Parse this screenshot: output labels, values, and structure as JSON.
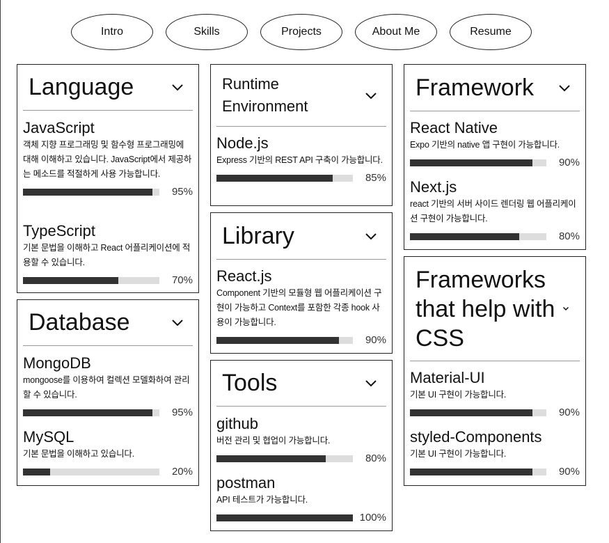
{
  "nav": [
    "Intro",
    "Skills",
    "Projects",
    "About Me",
    "Resume"
  ],
  "cards": {
    "language": {
      "title": "Language",
      "items": [
        {
          "name": "JavaScript",
          "desc": "객체 지향 프로그래밍 및 함수형 프로그래밍에 대해 이해하고 있습니다. JavaScript에서 제공하는 메소드를 적절하게 사용 가능합니다.",
          "percent": 95,
          "percent_label": "95%"
        },
        {
          "name": "TypeScript",
          "desc": "기본 문법을 이해하고 React 어플리케이션에 적용할 수 있습니다.",
          "percent": 70,
          "percent_label": "70%"
        }
      ]
    },
    "database": {
      "title": "Database",
      "items": [
        {
          "name": "MongoDB",
          "desc": "mongoose를 이용하여 컬렉션 모델화하여 관리할 수 있습니다.",
          "percent": 95,
          "percent_label": "95%"
        },
        {
          "name": "MySQL",
          "desc": "기본 문법을 이해하고 있습니다.",
          "percent": 20,
          "percent_label": "20%"
        }
      ]
    },
    "runtime": {
      "title": "Runtime Environment",
      "items": [
        {
          "name": "Node.js",
          "desc": "Express 기반의 REST API 구축이 가능합니다.",
          "percent": 85,
          "percent_label": "85%"
        }
      ]
    },
    "library": {
      "title": "Library",
      "items": [
        {
          "name": "React.js",
          "desc": "Component 기반의 모듈형 웹 어플리케이션 구현이 가능하고 Context를 포함한 각종 hook 사용이 가능합니다.",
          "percent": 90,
          "percent_label": "90%"
        }
      ]
    },
    "tools": {
      "title": "Tools",
      "items": [
        {
          "name": "github",
          "desc": "버전 관리 및 협업이 가능합니다.",
          "percent": 80,
          "percent_label": "80%"
        },
        {
          "name": "postman",
          "desc": "API 테스트가 가능합니다.",
          "percent": 100,
          "percent_label": "100%"
        }
      ]
    },
    "framework": {
      "title": "Framework",
      "items": [
        {
          "name": "React Native",
          "desc": "Expo 기반의 native 앱 구현이 가능합니다.",
          "percent": 90,
          "percent_label": "90%"
        },
        {
          "name": "Next.js",
          "desc": "react 기반의 서버 사이드 렌더링 웹 어플리케이션 구현이 가능합니다.",
          "percent": 80,
          "percent_label": "80%"
        }
      ]
    },
    "css_frameworks": {
      "title": "Frameworks that help with CSS",
      "items": [
        {
          "name": "Material-UI",
          "desc": "기본 UI 구현이 가능합니다.",
          "percent": 90,
          "percent_label": "90%"
        },
        {
          "name": "styled-Components",
          "desc": "기본 UI 구현이 가능합니다.",
          "percent": 90,
          "percent_label": "90%"
        }
      ]
    }
  },
  "icons": {
    "collapse": "chevron-down-icon"
  },
  "colors": {
    "bar_fill": "#333333",
    "bar_track": "#dddddd",
    "border": "#222222"
  }
}
